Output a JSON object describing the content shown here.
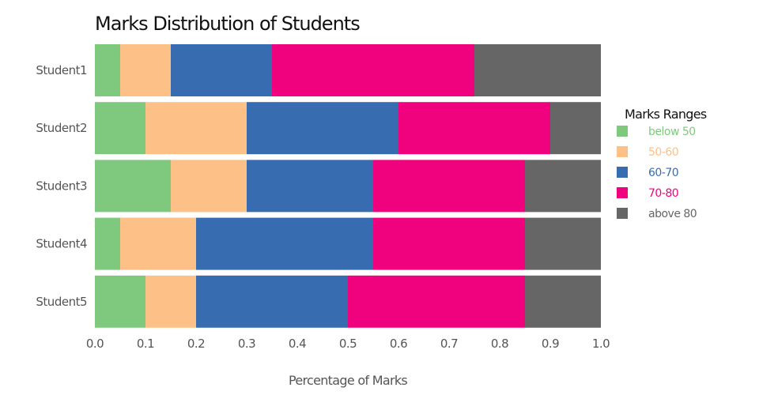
{
  "chart_data": {
    "type": "bar",
    "orientation": "horizontal",
    "stacked": true,
    "title": "Marks Distribution of Students",
    "xlabel": "Percentage of Marks",
    "ylabel": "",
    "xlim": [
      0.0,
      1.0
    ],
    "x_ticks": [
      "0.0",
      "0.1",
      "0.2",
      "0.3",
      "0.4",
      "0.5",
      "0.6",
      "0.7",
      "0.8",
      "0.9",
      "1.0"
    ],
    "categories": [
      "Student1",
      "Student2",
      "Student3",
      "Student4",
      "Student5"
    ],
    "legend_title": "Marks Ranges",
    "legend_position": "right",
    "grid": false,
    "series": [
      {
        "name": "below 50",
        "color": "#7fc97f",
        "values": [
          0.05,
          0.1,
          0.15,
          0.05,
          0.1
        ]
      },
      {
        "name": "50-60",
        "color": "#fdc086",
        "values": [
          0.1,
          0.2,
          0.15,
          0.15,
          0.1
        ]
      },
      {
        "name": "60-70",
        "color": "#386cb0",
        "values": [
          0.2,
          0.3,
          0.25,
          0.35,
          0.3
        ]
      },
      {
        "name": "70-80",
        "color": "#f0027f",
        "values": [
          0.4,
          0.3,
          0.3,
          0.3,
          0.35
        ]
      },
      {
        "name": "above 80",
        "color": "#666666",
        "values": [
          0.25,
          0.1,
          0.15,
          0.15,
          0.15
        ]
      }
    ]
  }
}
